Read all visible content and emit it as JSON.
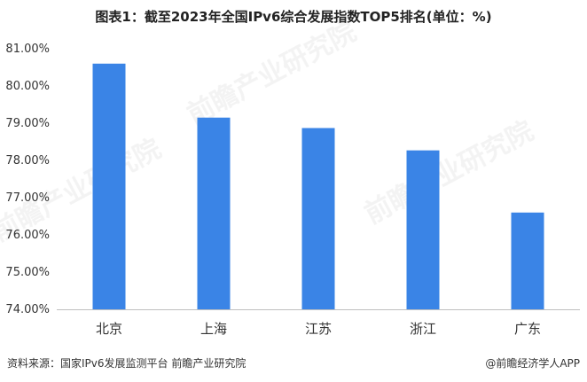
{
  "title": "图表1：截至2023年全国IPv6综合发展指数TOP5排名(单位：%)",
  "source": "资料来源：国家IPv6发展监测平台 前瞻产业研究院",
  "brand": "@前瞻经济学人APP",
  "watermark": "前瞻产业研究院",
  "colors": {
    "bar": "#3a84e6",
    "axis": "#bfbfbf",
    "text": "#333333"
  },
  "chart_data": {
    "type": "bar",
    "categories": [
      "北京",
      "上海",
      "江苏",
      "浙江",
      "广东"
    ],
    "values": [
      80.6,
      79.15,
      78.87,
      78.27,
      76.6
    ],
    "ylim": [
      74,
      81
    ],
    "yticks": [
      "74.00%",
      "75.00%",
      "76.00%",
      "77.00%",
      "78.00%",
      "79.00%",
      "80.00%",
      "81.00%"
    ],
    "grid": false
  }
}
